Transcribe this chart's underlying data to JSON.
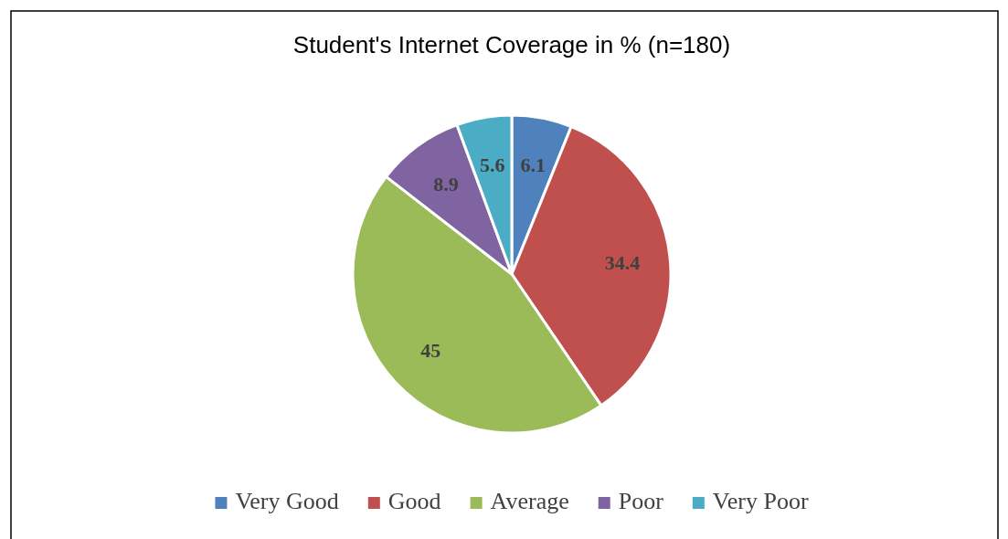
{
  "chart_data": {
    "type": "pie",
    "title": "Student's Internet Coverage in % (n=180)",
    "categories": [
      "Very Good",
      "Good",
      "Average",
      "Poor",
      "Very Poor"
    ],
    "values": [
      6.1,
      34.4,
      45,
      8.9,
      5.6
    ],
    "colors": [
      "#4f81bd",
      "#c0504d",
      "#9bbb59",
      "#8064a2",
      "#4bacc6"
    ],
    "data_labels": true,
    "legend": "bottom"
  }
}
